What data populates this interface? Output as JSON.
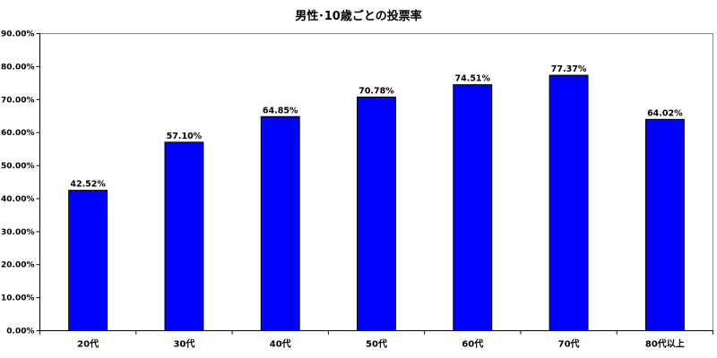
{
  "chart_data": {
    "type": "bar",
    "title": "男性･10歳ごとの投票率",
    "categories": [
      "20代",
      "30代",
      "40代",
      "50代",
      "60代",
      "70代",
      "80代以上"
    ],
    "values": [
      42.52,
      57.1,
      64.85,
      70.78,
      74.51,
      77.37,
      64.02
    ],
    "value_labels": [
      "42.52%",
      "57.10%",
      "64.85%",
      "70.78%",
      "74.51%",
      "77.37%",
      "64.02%"
    ],
    "yticks": [
      "0.00%",
      "10.00%",
      "20.00%",
      "30.00%",
      "40.00%",
      "50.00%",
      "60.00%",
      "70.00%",
      "80.00%",
      "90.00%"
    ],
    "ylim": [
      0,
      90
    ],
    "xlabel": "",
    "ylabel": "",
    "grid": false,
    "legend": "none",
    "bar_color": "#0000ff",
    "bar_edge_color": "#000000"
  }
}
